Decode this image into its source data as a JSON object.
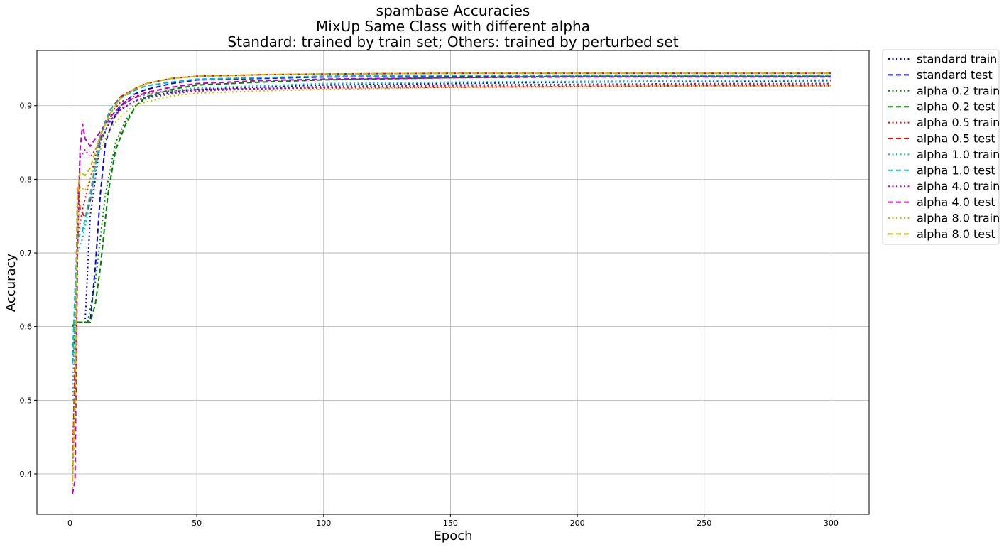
{
  "chart_data": {
    "type": "line",
    "title_lines": [
      "spambase Accuracies",
      "MixUp Same Class with different alpha",
      "Standard: trained by train set; Others: trained by perturbed set"
    ],
    "xlabel": "Epoch",
    "ylabel": "Accuracy",
    "xlim": [
      -13,
      315
    ],
    "ylim": [
      0.345,
      0.975
    ],
    "xticks": [
      0,
      50,
      100,
      150,
      200,
      250,
      300
    ],
    "yticks": [
      0.4,
      0.5,
      0.6,
      0.7,
      0.8,
      0.9
    ],
    "grid": true,
    "legend_position": "outside-right-top",
    "series": [
      {
        "name": "standard train",
        "color": "#0000ff",
        "dash": "dotted",
        "points": [
          [
            1,
            0.55
          ],
          [
            2,
            0.606
          ],
          [
            6,
            0.606
          ],
          [
            8,
            0.75
          ],
          [
            12,
            0.85
          ],
          [
            16,
            0.88
          ],
          [
            20,
            0.895
          ],
          [
            25,
            0.905
          ],
          [
            30,
            0.912
          ],
          [
            40,
            0.918
          ],
          [
            50,
            0.922
          ],
          [
            75,
            0.925
          ],
          [
            100,
            0.928
          ],
          [
            150,
            0.93
          ],
          [
            200,
            0.932
          ],
          [
            250,
            0.933
          ],
          [
            300,
            0.934
          ]
        ]
      },
      {
        "name": "standard test",
        "color": "#0000ff",
        "dash": "dashed",
        "points": [
          [
            1,
            0.6
          ],
          [
            2,
            0.606
          ],
          [
            8,
            0.606
          ],
          [
            10,
            0.68
          ],
          [
            12,
            0.78
          ],
          [
            14,
            0.85
          ],
          [
            17,
            0.88
          ],
          [
            20,
            0.9
          ],
          [
            25,
            0.915
          ],
          [
            30,
            0.922
          ],
          [
            40,
            0.93
          ],
          [
            50,
            0.935
          ],
          [
            75,
            0.937
          ],
          [
            100,
            0.939
          ],
          [
            150,
            0.94
          ],
          [
            200,
            0.94
          ],
          [
            250,
            0.94
          ],
          [
            300,
            0.94
          ]
        ]
      },
      {
        "name": "alpha 0.2 train",
        "color": "#008000",
        "dash": "dotted",
        "points": [
          [
            1,
            0.55
          ],
          [
            2,
            0.606
          ],
          [
            7,
            0.606
          ],
          [
            10,
            0.66
          ],
          [
            14,
            0.78
          ],
          [
            18,
            0.85
          ],
          [
            22,
            0.88
          ],
          [
            26,
            0.9
          ],
          [
            30,
            0.91
          ],
          [
            40,
            0.916
          ],
          [
            50,
            0.92
          ],
          [
            75,
            0.923
          ],
          [
            100,
            0.926
          ],
          [
            150,
            0.928
          ],
          [
            200,
            0.929
          ],
          [
            250,
            0.93
          ],
          [
            300,
            0.93
          ]
        ]
      },
      {
        "name": "alpha 0.2 test",
        "color": "#008000",
        "dash": "dashed",
        "points": [
          [
            1,
            0.6
          ],
          [
            2,
            0.606
          ],
          [
            8,
            0.606
          ],
          [
            10,
            0.63
          ],
          [
            12,
            0.68
          ],
          [
            15,
            0.78
          ],
          [
            18,
            0.84
          ],
          [
            22,
            0.875
          ],
          [
            26,
            0.9
          ],
          [
            30,
            0.912
          ],
          [
            40,
            0.922
          ],
          [
            50,
            0.928
          ],
          [
            75,
            0.932
          ],
          [
            100,
            0.935
          ],
          [
            150,
            0.938
          ],
          [
            200,
            0.94
          ],
          [
            250,
            0.94
          ],
          [
            300,
            0.94
          ]
        ]
      },
      {
        "name": "alpha 0.5 train",
        "color": "#ff0000",
        "dash": "dotted",
        "points": [
          [
            1,
            0.41
          ],
          [
            2,
            0.55
          ],
          [
            3,
            0.72
          ],
          [
            5,
            0.76
          ],
          [
            8,
            0.8
          ],
          [
            12,
            0.86
          ],
          [
            16,
            0.89
          ],
          [
            20,
            0.905
          ],
          [
            25,
            0.912
          ],
          [
            30,
            0.917
          ],
          [
            40,
            0.92
          ],
          [
            50,
            0.922
          ],
          [
            75,
            0.923
          ],
          [
            100,
            0.924
          ],
          [
            150,
            0.925
          ],
          [
            200,
            0.926
          ],
          [
            250,
            0.927
          ],
          [
            300,
            0.927
          ]
        ]
      },
      {
        "name": "alpha 0.5 test",
        "color": "#ff0000",
        "dash": "dashed",
        "points": [
          [
            1,
            0.39
          ],
          [
            2,
            0.55
          ],
          [
            3,
            0.79
          ],
          [
            4,
            0.76
          ],
          [
            6,
            0.748
          ],
          [
            8,
            0.77
          ],
          [
            10,
            0.82
          ],
          [
            13,
            0.87
          ],
          [
            16,
            0.895
          ],
          [
            20,
            0.912
          ],
          [
            25,
            0.922
          ],
          [
            30,
            0.93
          ],
          [
            40,
            0.937
          ],
          [
            50,
            0.94
          ],
          [
            75,
            0.942
          ],
          [
            100,
            0.943
          ],
          [
            150,
            0.944
          ],
          [
            200,
            0.944
          ],
          [
            250,
            0.944
          ],
          [
            300,
            0.944
          ]
        ]
      },
      {
        "name": "alpha 1.0 train",
        "color": "#00bfbf",
        "dash": "dotted",
        "points": [
          [
            1,
            0.5
          ],
          [
            2,
            0.62
          ],
          [
            3,
            0.7
          ],
          [
            5,
            0.72
          ],
          [
            8,
            0.77
          ],
          [
            12,
            0.85
          ],
          [
            16,
            0.885
          ],
          [
            20,
            0.9
          ],
          [
            25,
            0.91
          ],
          [
            30,
            0.915
          ],
          [
            40,
            0.92
          ],
          [
            50,
            0.924
          ],
          [
            75,
            0.927
          ],
          [
            100,
            0.93
          ],
          [
            150,
            0.932
          ],
          [
            200,
            0.933
          ],
          [
            250,
            0.934
          ],
          [
            300,
            0.935
          ]
        ]
      },
      {
        "name": "alpha 1.0 test",
        "color": "#00bfbf",
        "dash": "dashed",
        "points": [
          [
            1,
            0.55
          ],
          [
            2,
            0.65
          ],
          [
            3,
            0.72
          ],
          [
            5,
            0.73
          ],
          [
            8,
            0.78
          ],
          [
            12,
            0.86
          ],
          [
            16,
            0.895
          ],
          [
            20,
            0.91
          ],
          [
            25,
            0.92
          ],
          [
            30,
            0.927
          ],
          [
            40,
            0.932
          ],
          [
            50,
            0.936
          ],
          [
            75,
            0.938
          ],
          [
            100,
            0.94
          ],
          [
            150,
            0.941
          ],
          [
            200,
            0.941
          ],
          [
            250,
            0.941
          ],
          [
            300,
            0.941
          ]
        ]
      },
      {
        "name": "alpha 4.0 train",
        "color": "#bf00bf",
        "dash": "dotted",
        "points": [
          [
            1,
            0.4
          ],
          [
            2,
            0.5
          ],
          [
            3,
            0.75
          ],
          [
            4,
            0.83
          ],
          [
            6,
            0.84
          ],
          [
            8,
            0.83
          ],
          [
            10,
            0.84
          ],
          [
            13,
            0.86
          ],
          [
            16,
            0.88
          ],
          [
            20,
            0.895
          ],
          [
            25,
            0.905
          ],
          [
            30,
            0.912
          ],
          [
            40,
            0.917
          ],
          [
            50,
            0.92
          ],
          [
            75,
            0.923
          ],
          [
            100,
            0.925
          ],
          [
            150,
            0.927
          ],
          [
            200,
            0.928
          ],
          [
            250,
            0.929
          ],
          [
            300,
            0.93
          ]
        ]
      },
      {
        "name": "alpha 4.0 test",
        "color": "#bf00bf",
        "dash": "dashed",
        "points": [
          [
            1,
            0.373
          ],
          [
            2,
            0.39
          ],
          [
            3,
            0.7
          ],
          [
            4,
            0.84
          ],
          [
            5,
            0.875
          ],
          [
            6,
            0.855
          ],
          [
            8,
            0.845
          ],
          [
            10,
            0.855
          ],
          [
            13,
            0.87
          ],
          [
            16,
            0.885
          ],
          [
            20,
            0.9
          ],
          [
            25,
            0.91
          ],
          [
            30,
            0.918
          ],
          [
            40,
            0.925
          ],
          [
            50,
            0.93
          ],
          [
            75,
            0.934
          ],
          [
            100,
            0.936
          ],
          [
            150,
            0.938
          ],
          [
            200,
            0.939
          ],
          [
            250,
            0.939
          ],
          [
            300,
            0.939
          ]
        ]
      },
      {
        "name": "alpha 8.0 train",
        "color": "#bfbf00",
        "dash": "dotted",
        "points": [
          [
            1,
            0.38
          ],
          [
            2,
            0.48
          ],
          [
            3,
            0.72
          ],
          [
            4,
            0.79
          ],
          [
            6,
            0.785
          ],
          [
            8,
            0.8
          ],
          [
            12,
            0.84
          ],
          [
            16,
            0.87
          ],
          [
            20,
            0.885
          ],
          [
            25,
            0.9
          ],
          [
            30,
            0.905
          ],
          [
            40,
            0.913
          ],
          [
            50,
            0.917
          ],
          [
            75,
            0.92
          ],
          [
            100,
            0.922
          ],
          [
            150,
            0.925
          ],
          [
            200,
            0.926
          ],
          [
            250,
            0.927
          ],
          [
            300,
            0.927
          ]
        ]
      },
      {
        "name": "alpha 8.0 test",
        "color": "#bfbf00",
        "dash": "dashed",
        "points": [
          [
            1,
            0.39
          ],
          [
            2,
            0.5
          ],
          [
            3,
            0.78
          ],
          [
            4,
            0.81
          ],
          [
            6,
            0.805
          ],
          [
            8,
            0.815
          ],
          [
            12,
            0.86
          ],
          [
            16,
            0.89
          ],
          [
            20,
            0.91
          ],
          [
            25,
            0.922
          ],
          [
            30,
            0.93
          ],
          [
            40,
            0.937
          ],
          [
            50,
            0.94
          ],
          [
            75,
            0.942
          ],
          [
            100,
            0.943
          ],
          [
            150,
            0.944
          ],
          [
            200,
            0.944
          ],
          [
            250,
            0.944
          ],
          [
            300,
            0.944
          ]
        ]
      }
    ]
  }
}
